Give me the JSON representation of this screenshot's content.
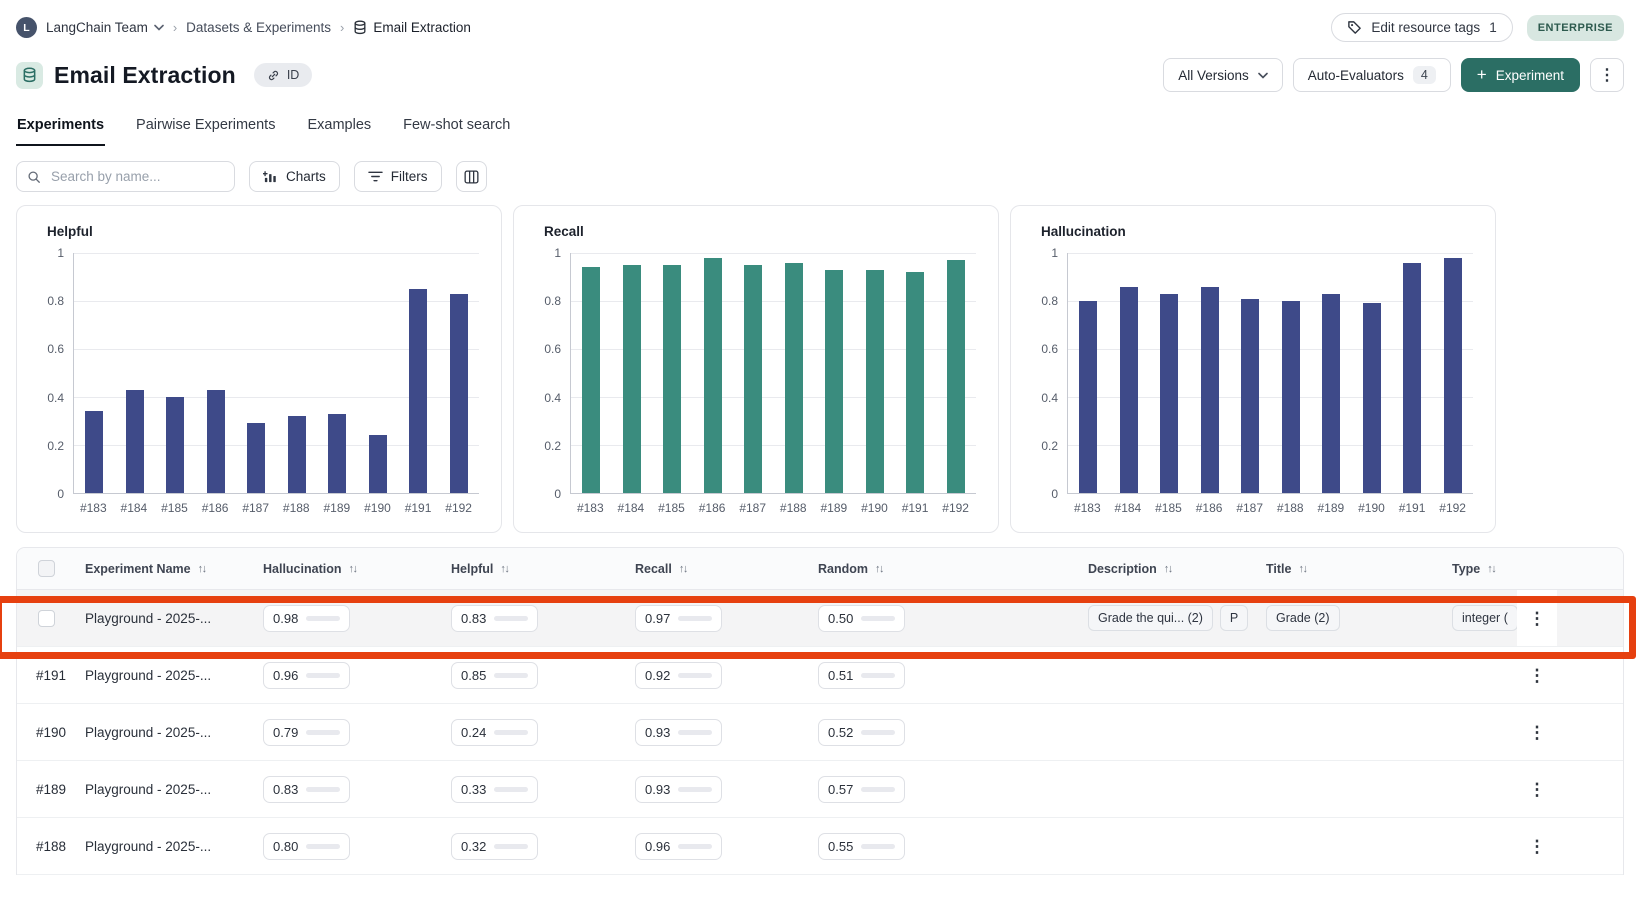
{
  "breadcrumb": {
    "avatar_letter": "L",
    "team": "LangChain Team",
    "section": "Datasets & Experiments",
    "current": "Email Extraction"
  },
  "header_right": {
    "edit_tags_label": "Edit resource tags",
    "edit_tags_count": "1",
    "plan_badge": "ENTERPRISE"
  },
  "title": {
    "text": "Email Extraction",
    "id_label": "ID"
  },
  "controls": {
    "versions_label": "All Versions",
    "evaluators_label": "Auto-Evaluators",
    "evaluators_count": "4",
    "experiment_label": "Experiment",
    "experiment_button_color": "#2b6e64"
  },
  "tabs": [
    {
      "label": "Experiments",
      "active": true
    },
    {
      "label": "Pairwise Experiments",
      "active": false
    },
    {
      "label": "Examples",
      "active": false
    },
    {
      "label": "Few-shot search",
      "active": false
    }
  ],
  "filter_row": {
    "search_placeholder": "Search by name...",
    "charts_label": "Charts",
    "filters_label": "Filters"
  },
  "chart_data": [
    {
      "type": "bar",
      "title": "Helpful",
      "categories": [
        "#183",
        "#184",
        "#185",
        "#186",
        "#187",
        "#188",
        "#189",
        "#190",
        "#191",
        "#192"
      ],
      "values": [
        0.34,
        0.43,
        0.4,
        0.43,
        0.29,
        0.32,
        0.33,
        0.24,
        0.85,
        0.83
      ],
      "color": "#3e4a89",
      "ylim": [
        0,
        1
      ],
      "yticks": [
        "0",
        "0.2",
        "0.4",
        "0.6",
        "0.8",
        "1"
      ],
      "grid": true,
      "xlabel": "",
      "ylabel": ""
    },
    {
      "type": "bar",
      "title": "Recall",
      "categories": [
        "#183",
        "#184",
        "#185",
        "#186",
        "#187",
        "#188",
        "#189",
        "#190",
        "#191",
        "#192"
      ],
      "values": [
        0.94,
        0.95,
        0.95,
        0.98,
        0.95,
        0.96,
        0.93,
        0.93,
        0.92,
        0.97
      ],
      "color": "#3a8c7e",
      "ylim": [
        0,
        1
      ],
      "yticks": [
        "0",
        "0.2",
        "0.4",
        "0.6",
        "0.8",
        "1"
      ],
      "grid": true,
      "xlabel": "",
      "ylabel": ""
    },
    {
      "type": "bar",
      "title": "Hallucination",
      "categories": [
        "#183",
        "#184",
        "#185",
        "#186",
        "#187",
        "#188",
        "#189",
        "#190",
        "#191",
        "#192"
      ],
      "values": [
        0.8,
        0.86,
        0.83,
        0.86,
        0.81,
        0.8,
        0.83,
        0.79,
        0.96,
        0.98
      ],
      "color": "#3e4a89",
      "ylim": [
        0,
        1
      ],
      "yticks": [
        "0",
        "0.2",
        "0.4",
        "0.6",
        "0.8",
        "1"
      ],
      "grid": true,
      "xlabel": "",
      "ylabel": ""
    }
  ],
  "table": {
    "sort_icon": "↑↓",
    "metric_colors": {
      "hallucination": "#3e4a89",
      "helpful": "#3e4a89",
      "recall": "#3a8c7e",
      "random": "#2f7f74"
    },
    "columns": [
      {
        "key": "select",
        "label": "",
        "sortable": false
      },
      {
        "key": "name",
        "label": "Experiment Name",
        "sortable": true
      },
      {
        "key": "hallucination",
        "label": "Hallucination",
        "sortable": true
      },
      {
        "key": "helpful",
        "label": "Helpful",
        "sortable": true
      },
      {
        "key": "recall",
        "label": "Recall",
        "sortable": true
      },
      {
        "key": "random",
        "label": "Random",
        "sortable": true
      },
      {
        "key": "description",
        "label": "Description",
        "sortable": true
      },
      {
        "key": "title",
        "label": "Title",
        "sortable": true
      },
      {
        "key": "type",
        "label": "Type",
        "sortable": true
      },
      {
        "key": "actions",
        "label": "",
        "sortable": false
      }
    ],
    "rows": [
      {
        "row_label": "",
        "show_checkbox": true,
        "highlighted": true,
        "name": "Playground - 2025-...",
        "metrics": {
          "hallucination": {
            "value": "0.98",
            "fill": 0.98
          },
          "helpful": {
            "value": "0.83",
            "fill": 0.8
          },
          "recall": {
            "value": "0.97",
            "fill": 0.97
          },
          "random": {
            "value": "0.50",
            "fill": 0.17
          }
        },
        "description_badges": [
          "Grade the qui... (2)",
          "P"
        ],
        "title_badge": "Grade (2)",
        "type_badge": "integer ("
      },
      {
        "row_label": "#191",
        "show_checkbox": false,
        "highlighted": false,
        "name": "Playground - 2025-...",
        "metrics": {
          "hallucination": {
            "value": "0.96",
            "fill": 0.96
          },
          "helpful": {
            "value": "0.85",
            "fill": 0.82
          },
          "recall": {
            "value": "0.92",
            "fill": 0.92
          },
          "random": {
            "value": "0.51",
            "fill": 0.18
          }
        },
        "description_badges": [],
        "title_badge": "",
        "type_badge": ""
      },
      {
        "row_label": "#190",
        "show_checkbox": false,
        "highlighted": false,
        "name": "Playground - 2025-...",
        "metrics": {
          "hallucination": {
            "value": "0.79",
            "fill": 0.76
          },
          "helpful": {
            "value": "0.24",
            "fill": 0.22
          },
          "recall": {
            "value": "0.93",
            "fill": 0.93
          },
          "random": {
            "value": "0.52",
            "fill": 0.19
          }
        },
        "description_badges": [],
        "title_badge": "",
        "type_badge": ""
      },
      {
        "row_label": "#189",
        "show_checkbox": false,
        "highlighted": false,
        "name": "Playground - 2025-...",
        "metrics": {
          "hallucination": {
            "value": "0.83",
            "fill": 0.8
          },
          "helpful": {
            "value": "0.33",
            "fill": 0.3
          },
          "recall": {
            "value": "0.93",
            "fill": 0.93
          },
          "random": {
            "value": "0.57",
            "fill": 0.22
          }
        },
        "description_badges": [],
        "title_badge": "",
        "type_badge": ""
      },
      {
        "row_label": "#188",
        "show_checkbox": false,
        "highlighted": false,
        "name": "Playground - 2025-...",
        "metrics": {
          "hallucination": {
            "value": "0.80",
            "fill": 0.77
          },
          "helpful": {
            "value": "0.32",
            "fill": 0.29
          },
          "recall": {
            "value": "0.96",
            "fill": 0.96
          },
          "random": {
            "value": "0.55",
            "fill": 0.21
          }
        },
        "description_badges": [],
        "title_badge": "",
        "type_badge": ""
      }
    ]
  },
  "annotation": {
    "color": "#e6400f"
  }
}
